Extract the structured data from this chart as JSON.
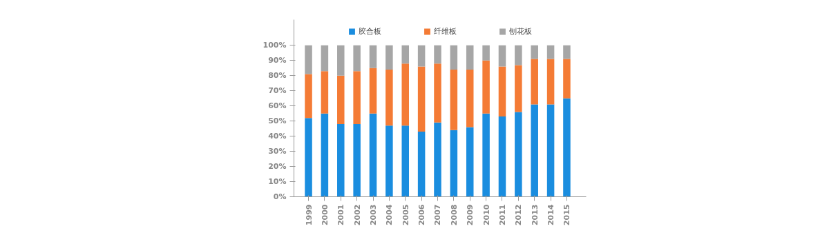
{
  "chart_data": {
    "type": "bar",
    "stacked": true,
    "categories": [
      "1999",
      "2000",
      "2001",
      "2002",
      "2003",
      "2004",
      "2005",
      "2006",
      "2007",
      "2008",
      "2009",
      "2010",
      "2011",
      "2012",
      "2013",
      "2014",
      "2015"
    ],
    "series": [
      {
        "name": "胶合板",
        "color": "#1a8ddf",
        "values": [
          52,
          55,
          48,
          48,
          55,
          47,
          47,
          43,
          49,
          44,
          46,
          55,
          53,
          56,
          61,
          61,
          65
        ]
      },
      {
        "name": "纤维板",
        "color": "#f47b35",
        "values": [
          29,
          28,
          32,
          35,
          30,
          37,
          41,
          43,
          39,
          40,
          38,
          35,
          33,
          31,
          30,
          30,
          26
        ]
      },
      {
        "name": "刨花板",
        "color": "#a6a6a6",
        "values": [
          19,
          17,
          20,
          17,
          15,
          16,
          12,
          14,
          12,
          16,
          16,
          10,
          14,
          13,
          9,
          9,
          9
        ]
      }
    ],
    "ylim": [
      0,
      117
    ],
    "yticks": [
      {
        "value": 0,
        "label": "0%"
      },
      {
        "value": 10,
        "label": "10%"
      },
      {
        "value": 20,
        "label": "20%"
      },
      {
        "value": 30,
        "label": "30%"
      },
      {
        "value": 40,
        "label": "40%"
      },
      {
        "value": 50,
        "label": "50%"
      },
      {
        "value": 60,
        "label": "60%"
      },
      {
        "value": 70,
        "label": "70%"
      },
      {
        "value": 80,
        "label": "80%"
      },
      {
        "value": 90,
        "label": "90%"
      },
      {
        "value": 100,
        "label": "100%"
      }
    ],
    "grid": false,
    "legend": "top"
  }
}
